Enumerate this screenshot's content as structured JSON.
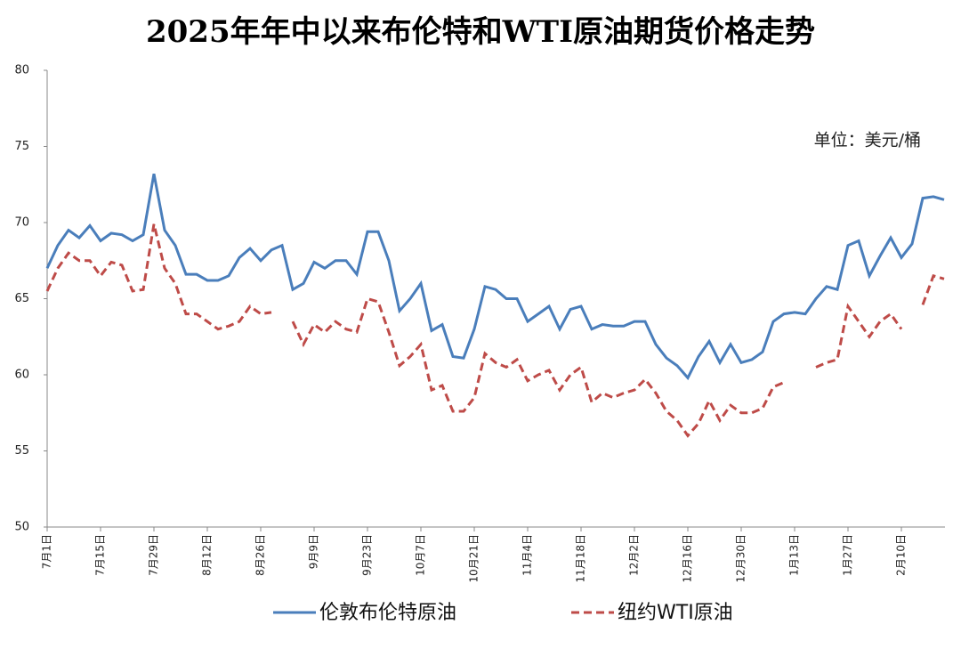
{
  "chart_data": {
    "type": "line",
    "title": "2025年年中以来布伦特和WTI原油期货价格走势",
    "annotation": "单位：美元/桶",
    "categories": [
      "7月1日",
      null,
      null,
      null,
      null,
      "7月15日",
      null,
      null,
      null,
      null,
      "7月29日",
      null,
      null,
      null,
      null,
      "8月12日",
      null,
      null,
      null,
      null,
      "8月26日",
      null,
      null,
      null,
      null,
      "9月9日",
      null,
      null,
      null,
      null,
      "9月23日",
      null,
      null,
      null,
      null,
      "10月7日",
      null,
      null,
      null,
      null,
      "10月21日",
      null,
      null,
      null,
      null,
      "11月4日",
      null,
      null,
      null,
      null,
      "11月18日",
      null,
      null,
      null,
      null,
      "12月2日",
      null,
      null,
      null,
      null,
      "12月16日",
      null,
      null,
      null,
      null,
      "12月30日",
      null,
      null,
      null,
      null,
      "1月13日",
      null,
      null,
      null,
      null,
      "1月27日",
      null,
      null,
      null,
      null,
      "2月10日",
      null,
      null,
      null,
      null
    ],
    "series": [
      {
        "name": "伦敦布伦特原油",
        "color": "#4a7ebb",
        "dash": false,
        "values": [
          67,
          68.5,
          69.5,
          69,
          69.8,
          68.8,
          69.3,
          69.2,
          68.8,
          69.2,
          73.2,
          69.5,
          68.5,
          66.6,
          66.6,
          66.2,
          66.2,
          66.5,
          67.7,
          68.3,
          67.5,
          68.2,
          68.5,
          65.6,
          66,
          67.4,
          67,
          67.5,
          67.5,
          66.6,
          69.4,
          69.4,
          67.5,
          64.2,
          65,
          66,
          62.9,
          63.3,
          61.2,
          61.1,
          63,
          65.8,
          65.6,
          65,
          65,
          63.5,
          64,
          64.5,
          63,
          64.3,
          64.5,
          63,
          63.3,
          63.2,
          63.2,
          63.5,
          63.5,
          62,
          61.1,
          60.6,
          59.8,
          61.2,
          62.2,
          60.8,
          62,
          60.8,
          61,
          61.5,
          63.5,
          64,
          64.1,
          64,
          65,
          65.8,
          65.6,
          68.5,
          68.8,
          66.5,
          67.8,
          69,
          67.7,
          68.6,
          71.6,
          71.7,
          71.5
        ]
      },
      {
        "name": "纽约WTI原油",
        "color": "#be4b48",
        "dash": true,
        "values": [
          65.5,
          67,
          68,
          67.5,
          67.5,
          66.5,
          67.4,
          67.2,
          65.5,
          65.6,
          69.9,
          67,
          66,
          64,
          64,
          63.5,
          63,
          63.2,
          63.5,
          64.5,
          64,
          64.1,
          null,
          63.5,
          62,
          63.3,
          62.8,
          63.5,
          63,
          62.8,
          65,
          64.8,
          62.8,
          60.6,
          61.2,
          62,
          59,
          59.3,
          57.6,
          57.6,
          58.5,
          61.4,
          60.8,
          60.5,
          61,
          59.6,
          60,
          60.3,
          59,
          60,
          60.5,
          58.2,
          58.8,
          58.5,
          58.8,
          59,
          59.7,
          58.8,
          57.6,
          57,
          56,
          56.8,
          58.3,
          57,
          58,
          57.5,
          57.5,
          57.8,
          59.2,
          59.5,
          null,
          null,
          60.5,
          60.8,
          61,
          64.5,
          63.5,
          62.5,
          63.5,
          64,
          63,
          null,
          64.6,
          66.5,
          66.3
        ]
      }
    ],
    "ylim": [
      50,
      80
    ],
    "yticks": [
      50,
      55,
      60,
      65,
      70,
      75,
      80
    ],
    "grid": false
  }
}
